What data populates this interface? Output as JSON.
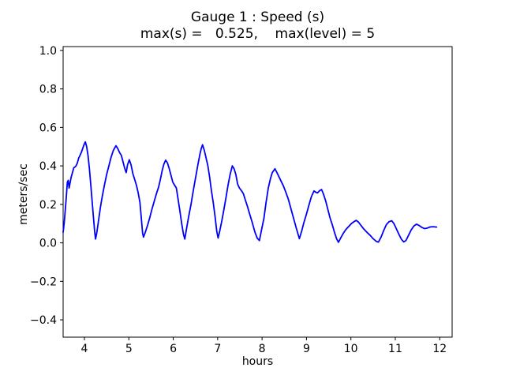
{
  "figure": {
    "background": "#ffffff"
  },
  "chart_data": {
    "type": "line",
    "title": "Gauge 1 : Speed (s)",
    "subtitle": "max(s) =   0.525,    max(level) = 5",
    "annotations": {
      "max_s": 0.525,
      "max_level": 5
    },
    "xlabel": "hours",
    "ylabel": "meters/sec",
    "xlim": [
      3.52,
      12.28
    ],
    "ylim": [
      -0.49,
      1.02
    ],
    "xtick_values": [
      4,
      5,
      6,
      7,
      8,
      9,
      10,
      11,
      12
    ],
    "xtick_labels": [
      "4",
      "5",
      "6",
      "7",
      "8",
      "9",
      "10",
      "11",
      "12"
    ],
    "ytick_values": [
      -0.4,
      -0.2,
      0.0,
      0.2,
      0.4,
      0.6,
      0.8,
      1.0
    ],
    "ytick_labels": [
      "−0.4",
      "−0.2",
      "0.0",
      "0.2",
      "0.4",
      "0.6",
      "0.8",
      "1.0"
    ],
    "grid": false,
    "legend": false,
    "line_color": "#0000ff",
    "axes_color": "#000000",
    "text_color": "#000000",
    "series": [
      {
        "name": "speed",
        "points": [
          [
            3.52,
            0.055
          ],
          [
            3.545,
            0.105
          ],
          [
            3.57,
            0.175
          ],
          [
            3.595,
            0.25
          ],
          [
            3.615,
            0.315
          ],
          [
            3.635,
            0.325
          ],
          [
            3.655,
            0.285
          ],
          [
            3.675,
            0.31
          ],
          [
            3.7,
            0.34
          ],
          [
            3.73,
            0.365
          ],
          [
            3.76,
            0.39
          ],
          [
            3.79,
            0.395
          ],
          [
            3.81,
            0.4
          ],
          [
            3.84,
            0.415
          ],
          [
            3.87,
            0.44
          ],
          [
            3.9,
            0.455
          ],
          [
            3.93,
            0.47
          ],
          [
            3.96,
            0.49
          ],
          [
            3.99,
            0.51
          ],
          [
            4.02,
            0.525
          ],
          [
            4.05,
            0.5
          ],
          [
            4.08,
            0.455
          ],
          [
            4.11,
            0.39
          ],
          [
            4.14,
            0.31
          ],
          [
            4.17,
            0.225
          ],
          [
            4.2,
            0.14
          ],
          [
            4.23,
            0.06
          ],
          [
            4.25,
            0.02
          ],
          [
            4.28,
            0.055
          ],
          [
            4.32,
            0.12
          ],
          [
            4.36,
            0.185
          ],
          [
            4.4,
            0.24
          ],
          [
            4.45,
            0.3
          ],
          [
            4.5,
            0.355
          ],
          [
            4.55,
            0.4
          ],
          [
            4.6,
            0.445
          ],
          [
            4.65,
            0.48
          ],
          [
            4.71,
            0.505
          ],
          [
            4.75,
            0.49
          ],
          [
            4.79,
            0.47
          ],
          [
            4.83,
            0.455
          ],
          [
            4.87,
            0.42
          ],
          [
            4.91,
            0.385
          ],
          [
            4.94,
            0.365
          ],
          [
            4.97,
            0.405
          ],
          [
            5.01,
            0.432
          ],
          [
            5.05,
            0.405
          ],
          [
            5.09,
            0.36
          ],
          [
            5.13,
            0.33
          ],
          [
            5.17,
            0.3
          ],
          [
            5.21,
            0.26
          ],
          [
            5.25,
            0.21
          ],
          [
            5.28,
            0.13
          ],
          [
            5.31,
            0.05
          ],
          [
            5.33,
            0.03
          ],
          [
            5.37,
            0.055
          ],
          [
            5.42,
            0.09
          ],
          [
            5.47,
            0.13
          ],
          [
            5.52,
            0.175
          ],
          [
            5.57,
            0.215
          ],
          [
            5.62,
            0.255
          ],
          [
            5.67,
            0.29
          ],
          [
            5.71,
            0.33
          ],
          [
            5.75,
            0.375
          ],
          [
            5.79,
            0.41
          ],
          [
            5.83,
            0.43
          ],
          [
            5.87,
            0.415
          ],
          [
            5.91,
            0.385
          ],
          [
            5.95,
            0.35
          ],
          [
            5.99,
            0.315
          ],
          [
            6.03,
            0.3
          ],
          [
            6.07,
            0.285
          ],
          [
            6.11,
            0.225
          ],
          [
            6.15,
            0.165
          ],
          [
            6.19,
            0.1
          ],
          [
            6.23,
            0.045
          ],
          [
            6.26,
            0.02
          ],
          [
            6.3,
            0.075
          ],
          [
            6.35,
            0.14
          ],
          [
            6.4,
            0.2
          ],
          [
            6.45,
            0.27
          ],
          [
            6.5,
            0.335
          ],
          [
            6.55,
            0.4
          ],
          [
            6.6,
            0.46
          ],
          [
            6.63,
            0.49
          ],
          [
            6.66,
            0.51
          ],
          [
            6.7,
            0.48
          ],
          [
            6.74,
            0.44
          ],
          [
            6.78,
            0.4
          ],
          [
            6.82,
            0.34
          ],
          [
            6.86,
            0.27
          ],
          [
            6.9,
            0.21
          ],
          [
            6.94,
            0.14
          ],
          [
            6.98,
            0.06
          ],
          [
            7.01,
            0.025
          ],
          [
            7.05,
            0.065
          ],
          [
            7.09,
            0.11
          ],
          [
            7.13,
            0.16
          ],
          [
            7.18,
            0.225
          ],
          [
            7.23,
            0.295
          ],
          [
            7.28,
            0.355
          ],
          [
            7.33,
            0.4
          ],
          [
            7.37,
            0.385
          ],
          [
            7.41,
            0.355
          ],
          [
            7.45,
            0.305
          ],
          [
            7.49,
            0.285
          ],
          [
            7.54,
            0.27
          ],
          [
            7.58,
            0.255
          ],
          [
            7.62,
            0.225
          ],
          [
            7.67,
            0.19
          ],
          [
            7.72,
            0.15
          ],
          [
            7.78,
            0.105
          ],
          [
            7.84,
            0.055
          ],
          [
            7.89,
            0.025
          ],
          [
            7.94,
            0.012
          ],
          [
            7.99,
            0.07
          ],
          [
            8.04,
            0.125
          ],
          [
            8.09,
            0.21
          ],
          [
            8.14,
            0.285
          ],
          [
            8.19,
            0.335
          ],
          [
            8.23,
            0.365
          ],
          [
            8.29,
            0.385
          ],
          [
            8.35,
            0.358
          ],
          [
            8.44,
            0.315
          ],
          [
            8.48,
            0.296
          ],
          [
            8.54,
            0.26
          ],
          [
            8.59,
            0.228
          ],
          [
            8.68,
            0.152
          ],
          [
            8.77,
            0.077
          ],
          [
            8.84,
            0.022
          ],
          [
            8.89,
            0.06
          ],
          [
            8.94,
            0.104
          ],
          [
            9.0,
            0.15
          ],
          [
            9.06,
            0.2
          ],
          [
            9.11,
            0.24
          ],
          [
            9.17,
            0.27
          ],
          [
            9.21,
            0.263
          ],
          [
            9.25,
            0.26
          ],
          [
            9.3,
            0.272
          ],
          [
            9.34,
            0.277
          ],
          [
            9.38,
            0.255
          ],
          [
            9.43,
            0.22
          ],
          [
            9.48,
            0.175
          ],
          [
            9.53,
            0.13
          ],
          [
            9.58,
            0.095
          ],
          [
            9.63,
            0.055
          ],
          [
            9.68,
            0.02
          ],
          [
            9.72,
            0.003
          ],
          [
            9.77,
            0.025
          ],
          [
            9.83,
            0.05
          ],
          [
            9.89,
            0.07
          ],
          [
            9.95,
            0.085
          ],
          [
            10.01,
            0.1
          ],
          [
            10.07,
            0.11
          ],
          [
            10.12,
            0.117
          ],
          [
            10.17,
            0.108
          ],
          [
            10.23,
            0.09
          ],
          [
            10.29,
            0.072
          ],
          [
            10.36,
            0.055
          ],
          [
            10.43,
            0.04
          ],
          [
            10.5,
            0.022
          ],
          [
            10.57,
            0.008
          ],
          [
            10.62,
            0.004
          ],
          [
            10.68,
            0.03
          ],
          [
            10.74,
            0.065
          ],
          [
            10.8,
            0.095
          ],
          [
            10.86,
            0.11
          ],
          [
            10.92,
            0.115
          ],
          [
            10.97,
            0.1
          ],
          [
            11.02,
            0.075
          ],
          [
            11.08,
            0.045
          ],
          [
            11.14,
            0.018
          ],
          [
            11.19,
            0.005
          ],
          [
            11.24,
            0.012
          ],
          [
            11.3,
            0.04
          ],
          [
            11.36,
            0.068
          ],
          [
            11.42,
            0.088
          ],
          [
            11.48,
            0.097
          ],
          [
            11.54,
            0.09
          ],
          [
            11.6,
            0.08
          ],
          [
            11.66,
            0.074
          ],
          [
            11.72,
            0.077
          ],
          [
            11.79,
            0.083
          ],
          [
            11.86,
            0.084
          ],
          [
            11.93,
            0.082
          ]
        ]
      }
    ]
  }
}
